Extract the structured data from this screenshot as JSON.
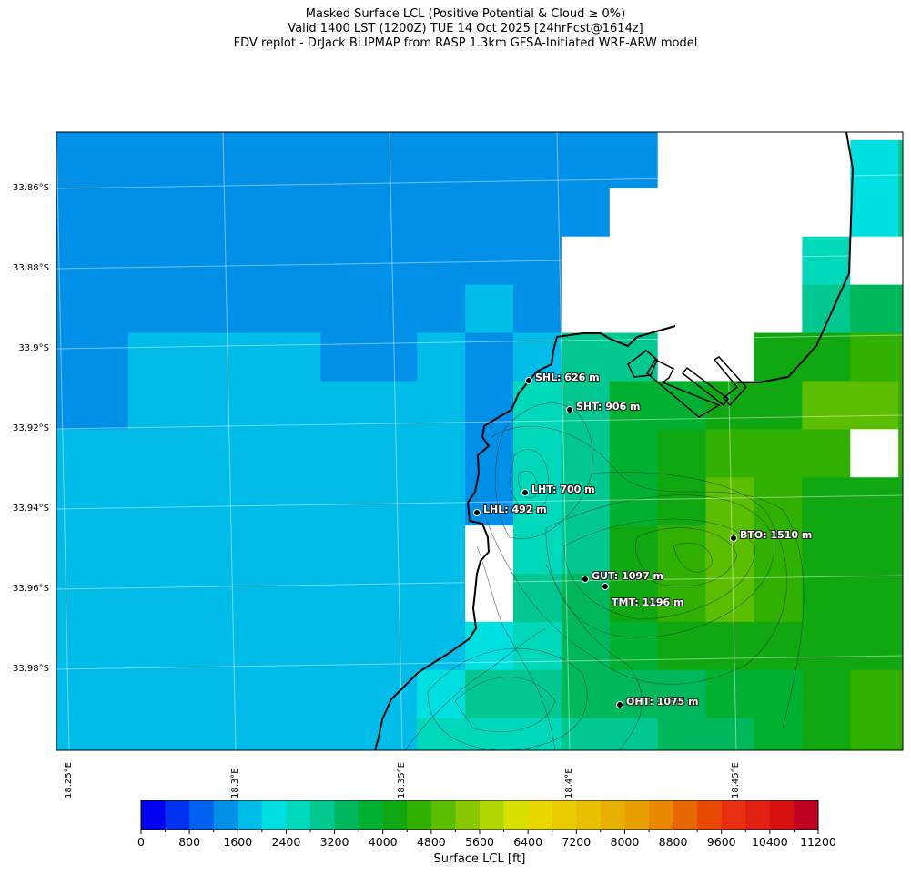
{
  "title": {
    "line1": "Masked Surface LCL (Positive Potential & Cloud ≥ 0%)",
    "line2": "Valid 1400 LST (1200Z) TUE 14 Oct 2025 [24hrFcst@1614z]",
    "line3": "FDV replot - DrJack BLIPMAP from RASP 1.3km GFSA-Initiated WRF-ARW model"
  },
  "axes": {
    "lat_labels": [
      "33.86°S",
      "33.88°S",
      "33.9°S",
      "33.92°S",
      "33.94°S",
      "33.96°S",
      "33.98°S"
    ],
    "lon_labels": [
      "18.25°E",
      "18.3°E",
      "18.35°E",
      "18.4°E",
      "18.45°E"
    ]
  },
  "stations": [
    {
      "label": "SHL: 626 m"
    },
    {
      "label": "SHT: 906 m"
    },
    {
      "label": "LHT: 700 m"
    },
    {
      "label": "LHL: 492 m"
    },
    {
      "label": "BTO: 1510 m"
    },
    {
      "label": "GUT: 1097 m"
    },
    {
      "label": "TMT: 1196 m"
    },
    {
      "label": "OHT: 1075 m"
    }
  ],
  "colorbar": {
    "label": "Surface LCL [ft]",
    "ticks": [
      "0",
      "800",
      "1600",
      "2400",
      "3200",
      "4000",
      "4800",
      "5600",
      "6400",
      "7200",
      "8000",
      "8800",
      "9600",
      "10400",
      "11200"
    ],
    "min": 0,
    "max": 11200,
    "step": 400,
    "colors": [
      "#0000f0",
      "#0030f0",
      "#0060f0",
      "#0090e8",
      "#00bce8",
      "#00e0e0",
      "#00d8bc",
      "#00c890",
      "#00b85c",
      "#00b030",
      "#10a810",
      "#30b000",
      "#5cbe00",
      "#88c800",
      "#b0d800",
      "#d8e000",
      "#e8d800",
      "#e8cc00",
      "#e8c000",
      "#e8b000",
      "#e8a000",
      "#e88800",
      "#e86800",
      "#e84800",
      "#e83010",
      "#e02010",
      "#d81010",
      "#c00020"
    ]
  },
  "chart_data": {
    "type": "heatmap",
    "title": "Masked Surface LCL",
    "units": "ft",
    "note": "values are colour-level indices (level*400 ft); -1 = masked",
    "grid": [
      [
        3,
        3,
        3,
        3,
        3,
        3,
        3,
        3,
        3,
        3,
        3,
        3,
        3,
        -1,
        -1,
        -1,
        -1,
        -1,
        -1
      ],
      [
        3,
        3,
        3,
        3,
        3,
        3,
        3,
        3,
        3,
        3,
        3,
        3,
        3,
        -1,
        -1,
        -1,
        -1,
        5,
        7
      ],
      [
        3,
        3,
        3,
        3,
        3,
        3,
        3,
        3,
        3,
        3,
        3,
        3,
        -1,
        -1,
        -1,
        -1,
        -1,
        5,
        7
      ],
      [
        3,
        3,
        3,
        3,
        3,
        3,
        3,
        3,
        3,
        3,
        3,
        -1,
        -1,
        -1,
        -1,
        -1,
        6,
        -1,
        -1
      ],
      [
        3,
        3,
        3,
        3,
        3,
        3,
        3,
        3,
        3,
        4,
        3,
        -1,
        -1,
        -1,
        -1,
        -1,
        7,
        8,
        8
      ],
      [
        3,
        3,
        4,
        4,
        4,
        4,
        3,
        3,
        4,
        3,
        4,
        7,
        7,
        -1,
        -1,
        10,
        10,
        11,
        11
      ],
      [
        3,
        3,
        4,
        4,
        4,
        4,
        4,
        4,
        4,
        3,
        6,
        7,
        9,
        9,
        10,
        10,
        12,
        12,
        11
      ],
      [
        4,
        4,
        4,
        4,
        4,
        4,
        4,
        4,
        4,
        3,
        6,
        7,
        9,
        10,
        11,
        11,
        11,
        -1,
        11
      ],
      [
        4,
        4,
        4,
        4,
        4,
        4,
        4,
        4,
        4,
        3,
        6,
        7,
        9,
        10,
        12,
        11,
        10,
        10,
        10
      ],
      [
        4,
        4,
        4,
        4,
        4,
        4,
        4,
        4,
        4,
        -1,
        6,
        7,
        10,
        11,
        12,
        11,
        10,
        10,
        10
      ],
      [
        4,
        4,
        4,
        4,
        4,
        4,
        4,
        4,
        4,
        -1,
        7,
        8,
        10,
        11,
        12,
        11,
        10,
        10,
        10
      ],
      [
        4,
        4,
        4,
        4,
        4,
        4,
        4,
        4,
        4,
        5,
        6,
        8,
        9,
        10,
        10,
        10,
        10,
        10,
        10
      ],
      [
        4,
        4,
        4,
        4,
        4,
        4,
        4,
        4,
        5,
        7,
        7,
        8,
        8,
        8,
        9,
        9,
        10,
        11,
        11
      ],
      [
        4,
        4,
        4,
        4,
        4,
        4,
        4,
        4,
        6,
        6,
        6,
        7,
        7,
        8,
        8,
        9,
        10,
        11,
        11
      ]
    ]
  }
}
